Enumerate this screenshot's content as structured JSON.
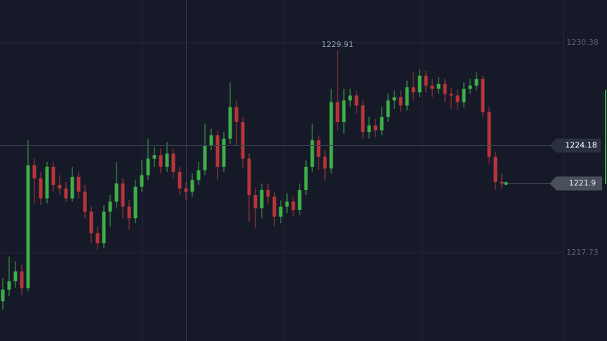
{
  "chart_data": {
    "type": "candlestick",
    "open": [
      1214.8,
      1215.5,
      1216.0,
      1216.6,
      1215.6,
      1223.0,
      1222.2,
      1221.0,
      1222.9,
      1221.8,
      1221.6,
      1221.0,
      1222.3,
      1221.4,
      1220.2,
      1218.9,
      1218.3,
      1220.2,
      1220.8,
      1221.9,
      1220.5,
      1219.8,
      1221.7,
      1222.4,
      1223.4,
      1223.6,
      1222.9,
      1223.7,
      1222.6,
      1221.6,
      1221.4,
      1222.1,
      1222.7,
      1224.2,
      1224.8,
      1222.9,
      1224.6,
      1226.5,
      1225.6,
      1223.4,
      1221.2,
      1220.4,
      1221.5,
      1221.1,
      1219.9,
      1220.5,
      1220.8,
      1220.3,
      1221.5,
      1222.9,
      1224.5,
      1223.5,
      1222.8,
      1226.8,
      1225.6,
      1226.9,
      1227.2,
      1226.6,
      1225.0,
      1225.4,
      1225.1,
      1225.9,
      1226.9,
      1227.1,
      1226.6,
      1227.7,
      1227.4,
      1228.4,
      1227.8,
      1227.6,
      1227.9,
      1227.3,
      1227.2,
      1226.8,
      1227.6,
      1227.8,
      1228.2,
      1226.2,
      1223.5,
      1222.0
    ],
    "high": [
      1216.2,
      1217.5,
      1217.2,
      1217.0,
      1224.5,
      1223.4,
      1222.6,
      1223.2,
      1223.2,
      1222.4,
      1222.0,
      1222.9,
      1222.6,
      1221.8,
      1220.5,
      1219.3,
      1220.6,
      1221.2,
      1223.2,
      1222.2,
      1220.9,
      1222.1,
      1223.3,
      1224.6,
      1224.1,
      1224.0,
      1224.4,
      1224.0,
      1222.9,
      1222.0,
      1222.5,
      1223.2,
      1225.5,
      1225.2,
      1225.1,
      1225.0,
      1228.0,
      1226.9,
      1225.9,
      1223.7,
      1221.6,
      1221.9,
      1221.9,
      1221.4,
      1220.9,
      1221.3,
      1221.1,
      1221.9,
      1223.3,
      1225.5,
      1224.8,
      1223.9,
      1227.6,
      1229.91,
      1227.6,
      1227.6,
      1227.5,
      1226.9,
      1225.9,
      1225.8,
      1226.5,
      1227.3,
      1227.5,
      1227.5,
      1228.1,
      1228.6,
      1228.8,
      1228.7,
      1228.2,
      1228.3,
      1228.2,
      1227.7,
      1227.6,
      1228.0,
      1228.2,
      1228.6,
      1228.4,
      1226.5,
      1223.8,
      1222.5
    ],
    "low": [
      1214.3,
      1215.1,
      1215.6,
      1215.2,
      1215.4,
      1220.7,
      1220.6,
      1220.7,
      1221.4,
      1221.2,
      1220.8,
      1220.8,
      1221.0,
      1219.8,
      1218.3,
      1217.9,
      1218.0,
      1219.3,
      1220.4,
      1219.8,
      1219.1,
      1219.5,
      1221.4,
      1222.1,
      1222.9,
      1222.5,
      1222.6,
      1222.2,
      1221.2,
      1220.9,
      1221.1,
      1221.8,
      1222.4,
      1223.9,
      1222.1,
      1222.6,
      1224.3,
      1224.2,
      1222.8,
      1219.6,
      1219.2,
      1219.8,
      1220.7,
      1219.3,
      1219.5,
      1220.1,
      1219.9,
      1220.0,
      1221.2,
      1222.6,
      1222.7,
      1222.1,
      1222.5,
      1225.1,
      1224.9,
      1226.5,
      1226.1,
      1224.6,
      1224.6,
      1224.7,
      1224.8,
      1225.6,
      1226.4,
      1226.2,
      1226.3,
      1226.9,
      1227.1,
      1227.4,
      1227.1,
      1227.3,
      1226.8,
      1226.4,
      1226.3,
      1226.5,
      1227.3,
      1227.5,
      1225.9,
      1223.1,
      1221.5,
      1221.6
    ],
    "close": [
      1215.5,
      1216.0,
      1216.6,
      1215.6,
      1223.0,
      1222.2,
      1221.0,
      1222.9,
      1221.8,
      1221.6,
      1221.0,
      1222.3,
      1221.4,
      1220.2,
      1218.9,
      1218.3,
      1220.2,
      1220.8,
      1221.9,
      1220.5,
      1219.8,
      1221.7,
      1222.4,
      1223.4,
      1223.6,
      1222.9,
      1223.7,
      1222.6,
      1221.6,
      1221.4,
      1222.1,
      1222.7,
      1224.2,
      1224.8,
      1222.9,
      1224.6,
      1226.5,
      1225.6,
      1223.4,
      1221.2,
      1220.4,
      1221.5,
      1221.1,
      1219.9,
      1220.5,
      1220.8,
      1220.3,
      1221.5,
      1222.9,
      1224.5,
      1223.5,
      1222.8,
      1226.8,
      1225.6,
      1226.9,
      1227.2,
      1226.6,
      1225.0,
      1225.4,
      1225.1,
      1225.9,
      1226.9,
      1227.1,
      1226.6,
      1227.7,
      1227.4,
      1228.4,
      1227.8,
      1227.6,
      1227.9,
      1227.3,
      1227.2,
      1226.8,
      1227.6,
      1227.8,
      1228.2,
      1226.2,
      1223.5,
      1222.0,
      1221.9
    ],
    "up_color": "#3fae49",
    "down_color": "#b7353a",
    "ylim": [
      1212.4,
      1232.96
    ],
    "yticks": [
      1230.38,
      1217.73
    ],
    "grid": true,
    "crosshair_value": 1224.18
  }
}
